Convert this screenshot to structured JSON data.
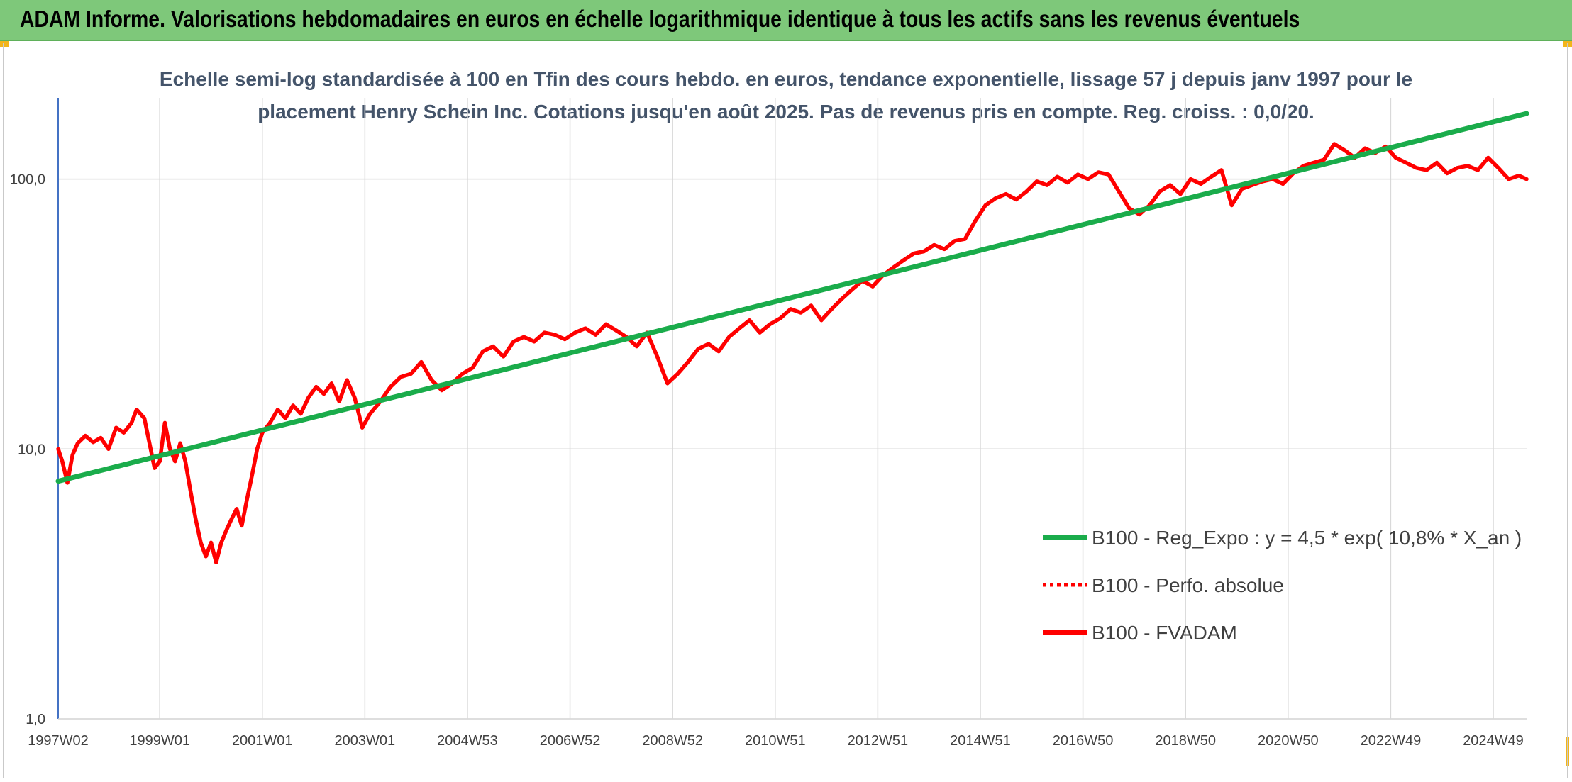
{
  "header": {
    "title": "ADAM Informe. Valorisations hebdomadaires en euros en échelle logarithmique identique à tous les actifs sans les revenus éventuels"
  },
  "colors": {
    "header_bg": "#7ec87a",
    "trend": "#1aac4b",
    "price": "#ff0000",
    "axis": "#4472c4",
    "grid": "#d9d9d9"
  },
  "chart_data": {
    "type": "line",
    "title": "Echelle semi-log standardisée à 100 en Tfin des cours hebdo. en euros, tendance exponentielle, lissage 57 j depuis janv 1997 pour le placement Henry Schein Inc. Cotations jusqu'en août 2025. Pas de revenus pris en compte. Reg. croiss. : 0,0/20.",
    "title_lines": [
      "Echelle semi-log standardisée à 100 en Tfin des cours hebdo. en euros, tendance exponentielle, lissage 57 j depuis janv 1997 pour le",
      "placement Henry Schein Inc. Cotations jusqu'en août 2025. Pas de revenus pris en compte. Reg. croiss. : 0,0/20."
    ],
    "y_scale": "log",
    "ylim": [
      1,
      200
    ],
    "xlim": [
      1997.02,
      2025.65
    ],
    "y_ticks": [
      {
        "value": 1,
        "label": "1,0"
      },
      {
        "value": 10,
        "label": "10,0"
      },
      {
        "value": 100,
        "label": "100,0"
      }
    ],
    "x_ticks": [
      {
        "value": 1997.02,
        "label": "1997W02"
      },
      {
        "value": 1999.0,
        "label": "1999W01"
      },
      {
        "value": 2001.0,
        "label": "2001W01"
      },
      {
        "value": 2003.0,
        "label": "2003W01"
      },
      {
        "value": 2005.0,
        "label": "2004W53"
      },
      {
        "value": 2007.0,
        "label": "2006W52"
      },
      {
        "value": 2009.0,
        "label": "2008W52"
      },
      {
        "value": 2011.0,
        "label": "2010W51"
      },
      {
        "value": 2013.0,
        "label": "2012W51"
      },
      {
        "value": 2015.0,
        "label": "2014W51"
      },
      {
        "value": 2017.0,
        "label": "2016W50"
      },
      {
        "value": 2019.0,
        "label": "2018W50"
      },
      {
        "value": 2021.0,
        "label": "2020W50"
      },
      {
        "value": 2023.0,
        "label": "2022W49"
      },
      {
        "value": 2025.0,
        "label": "2024W49"
      }
    ],
    "grid": true,
    "legend_position": "bottom-right",
    "series": [
      {
        "name": "B100 - Reg_Expo : y = 4,5 * exp( 10,8% *  X_an )",
        "style": "solid",
        "color": "#1aac4b",
        "x": [
          1997.02,
          2025.65
        ],
        "y": [
          7.6,
          175
        ]
      },
      {
        "name": "B100 - Perfo. absolue",
        "style": "dotted",
        "color": "#ff0000",
        "x": [],
        "y": []
      },
      {
        "name": "B100 - FVADAM",
        "style": "solid",
        "color": "#ff0000",
        "x": [
          1997.02,
          1997.1,
          1997.2,
          1997.3,
          1997.4,
          1997.55,
          1997.7,
          1997.85,
          1998.0,
          1998.15,
          1998.3,
          1998.45,
          1998.55,
          1998.7,
          1998.8,
          1998.9,
          1999.0,
          1999.1,
          1999.2,
          1999.3,
          1999.4,
          1999.5,
          1999.6,
          1999.7,
          1999.8,
          1999.9,
          2000.0,
          2000.1,
          2000.2,
          2000.3,
          2000.4,
          2000.5,
          2000.6,
          2000.7,
          2000.8,
          2000.9,
          2001.0,
          2001.15,
          2001.3,
          2001.45,
          2001.6,
          2001.75,
          2001.9,
          2002.05,
          2002.2,
          2002.35,
          2002.5,
          2002.65,
          2002.8,
          2002.95,
          2003.1,
          2003.3,
          2003.5,
          2003.7,
          2003.9,
          2004.1,
          2004.3,
          2004.5,
          2004.7,
          2004.9,
          2005.1,
          2005.3,
          2005.5,
          2005.7,
          2005.9,
          2006.1,
          2006.3,
          2006.5,
          2006.7,
          2006.9,
          2007.1,
          2007.3,
          2007.5,
          2007.7,
          2007.9,
          2008.1,
          2008.3,
          2008.5,
          2008.7,
          2008.9,
          2009.1,
          2009.3,
          2009.5,
          2009.7,
          2009.9,
          2010.1,
          2010.3,
          2010.5,
          2010.7,
          2010.9,
          2011.1,
          2011.3,
          2011.5,
          2011.7,
          2011.9,
          2012.1,
          2012.3,
          2012.5,
          2012.7,
          2012.9,
          2013.1,
          2013.3,
          2013.5,
          2013.7,
          2013.9,
          2014.1,
          2014.3,
          2014.5,
          2014.7,
          2014.9,
          2015.1,
          2015.3,
          2015.5,
          2015.7,
          2015.9,
          2016.1,
          2016.3,
          2016.5,
          2016.7,
          2016.9,
          2017.1,
          2017.3,
          2017.5,
          2017.7,
          2017.9,
          2018.1,
          2018.3,
          2018.5,
          2018.7,
          2018.9,
          2019.1,
          2019.3,
          2019.5,
          2019.7,
          2019.9,
          2020.1,
          2020.3,
          2020.5,
          2020.7,
          2020.9,
          2021.1,
          2021.3,
          2021.5,
          2021.7,
          2021.9,
          2022.1,
          2022.3,
          2022.5,
          2022.7,
          2022.9,
          2023.1,
          2023.3,
          2023.5,
          2023.7,
          2023.9,
          2024.1,
          2024.3,
          2024.5,
          2024.7,
          2024.9,
          2025.1,
          2025.3,
          2025.5,
          2025.65
        ],
        "y": [
          10.0,
          9.0,
          7.5,
          9.5,
          10.5,
          11.2,
          10.6,
          11.0,
          10.0,
          12.0,
          11.5,
          12.5,
          14.0,
          13.0,
          10.5,
          8.5,
          9.0,
          12.5,
          10.0,
          9.0,
          10.5,
          9.0,
          7.0,
          5.5,
          4.5,
          4.0,
          4.5,
          3.8,
          4.5,
          5.0,
          5.5,
          6.0,
          5.2,
          6.5,
          8.0,
          10.0,
          11.5,
          12.5,
          14.0,
          13.0,
          14.5,
          13.5,
          15.5,
          17.0,
          16.0,
          17.5,
          15.0,
          18.0,
          15.5,
          12.0,
          13.5,
          15.0,
          17.0,
          18.5,
          19.0,
          21.0,
          18.0,
          16.5,
          17.5,
          19.0,
          20.0,
          23.0,
          24.0,
          22.0,
          25.0,
          26.0,
          25.0,
          27.0,
          26.5,
          25.5,
          27.0,
          28.0,
          26.5,
          29.0,
          27.5,
          26.0,
          24.0,
          27.0,
          22.0,
          17.5,
          19.0,
          21.0,
          23.5,
          24.5,
          23.0,
          26.0,
          28.0,
          30.0,
          27.0,
          29.0,
          30.5,
          33.0,
          32.0,
          34.0,
          30.0,
          33.0,
          36.0,
          39.0,
          42.0,
          40.0,
          44.0,
          47.0,
          50.0,
          53.0,
          54.0,
          57.0,
          55.0,
          59.0,
          60.0,
          70.0,
          80.0,
          85.0,
          88.0,
          84.0,
          90.0,
          98.0,
          95.0,
          102.0,
          97.0,
          104.0,
          100.0,
          106.0,
          104.0,
          90.0,
          78.0,
          74.0,
          80.0,
          90.0,
          95.0,
          88.0,
          100.0,
          96.0,
          102.0,
          108.0,
          80.0,
          92.0,
          95.0,
          98.0,
          100.0,
          96.0,
          105.0,
          112.0,
          115.0,
          118.0,
          135.0,
          128.0,
          120.0,
          130.0,
          125.0,
          132.0,
          120.0,
          115.0,
          110.0,
          108.0,
          115.0,
          105.0,
          110.0,
          112.0,
          108.0,
          120.0,
          110.0,
          100.0,
          103.0,
          100.0
        ]
      }
    ]
  }
}
